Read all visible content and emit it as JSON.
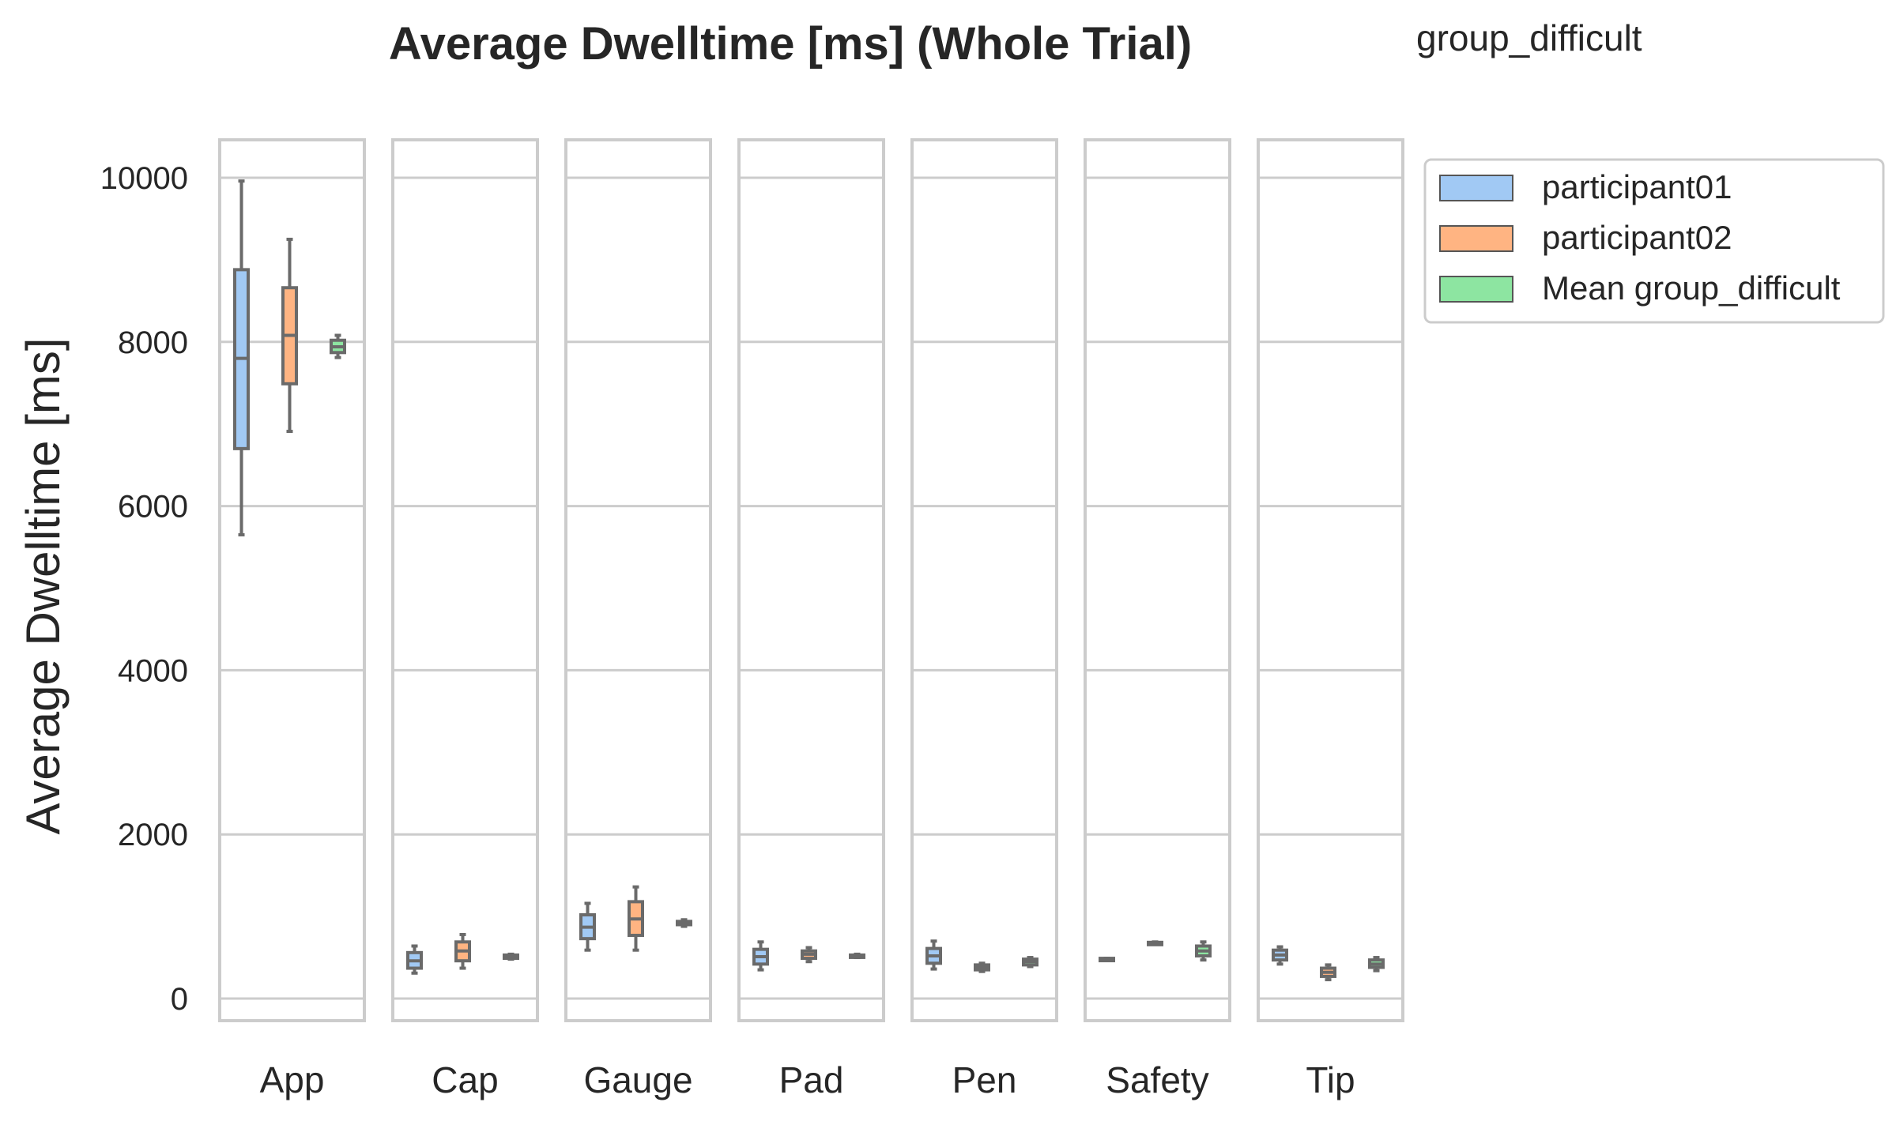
{
  "chart_data": {
    "type": "box",
    "title": "Average Dwelltime [ms] (Whole Trial)",
    "group_label": "group_difficult",
    "ylabel": "Average Dwelltime [ms]",
    "xlabel": "",
    "ylim": [
      -300,
      10500
    ],
    "yticks": [
      0,
      2000,
      4000,
      6000,
      8000,
      10000
    ],
    "grid": true,
    "legend_position": "top-right-outside",
    "categories": [
      "App",
      "Cap",
      "Gauge",
      "Pad",
      "Pen",
      "Safety",
      "Tip"
    ],
    "series": [
      {
        "name": "participant01",
        "color": "#a1c9f4",
        "boxes": [
          {
            "min": 5650,
            "q1": 6700,
            "median": 7800,
            "q3": 8880,
            "max": 9960
          },
          {
            "min": 310,
            "q1": 370,
            "median": 460,
            "q3": 560,
            "max": 640
          },
          {
            "min": 590,
            "q1": 730,
            "median": 870,
            "q3": 1020,
            "max": 1160
          },
          {
            "min": 350,
            "q1": 420,
            "median": 510,
            "q3": 600,
            "max": 690
          },
          {
            "min": 360,
            "q1": 430,
            "median": 520,
            "q3": 610,
            "max": 700
          },
          {
            "min": 470,
            "q1": 470,
            "median": 480,
            "q3": 490,
            "max": 490
          },
          {
            "min": 420,
            "q1": 470,
            "median": 530,
            "q3": 590,
            "max": 630
          }
        ]
      },
      {
        "name": "participant02",
        "color": "#ffb482",
        "boxes": [
          {
            "min": 6910,
            "q1": 7490,
            "median": 8080,
            "q3": 8660,
            "max": 9250
          },
          {
            "min": 370,
            "q1": 460,
            "median": 580,
            "q3": 690,
            "max": 780
          },
          {
            "min": 590,
            "q1": 770,
            "median": 970,
            "q3": 1180,
            "max": 1360
          },
          {
            "min": 450,
            "q1": 490,
            "median": 540,
            "q3": 580,
            "max": 620
          },
          {
            "min": 330,
            "q1": 350,
            "median": 380,
            "q3": 410,
            "max": 430
          },
          {
            "min": 670,
            "q1": 675,
            "median": 680,
            "q3": 685,
            "max": 690
          },
          {
            "min": 230,
            "q1": 270,
            "median": 320,
            "q3": 370,
            "max": 410
          }
        ]
      },
      {
        "name": "Mean group_difficult",
        "color": "#8de5a1",
        "boxes": [
          {
            "min": 7810,
            "q1": 7870,
            "median": 7940,
            "q3": 8020,
            "max": 8080
          },
          {
            "min": 480,
            "q1": 490,
            "median": 510,
            "q3": 530,
            "max": 540
          },
          {
            "min": 880,
            "q1": 900,
            "median": 920,
            "q3": 940,
            "max": 960
          },
          {
            "min": 500,
            "q1": 510,
            "median": 520,
            "q3": 530,
            "max": 540
          },
          {
            "min": 390,
            "q1": 410,
            "median": 450,
            "q3": 480,
            "max": 500
          },
          {
            "min": 470,
            "q1": 520,
            "median": 580,
            "q3": 640,
            "max": 690
          },
          {
            "min": 340,
            "q1": 380,
            "median": 420,
            "q3": 470,
            "max": 500
          }
        ]
      }
    ]
  }
}
